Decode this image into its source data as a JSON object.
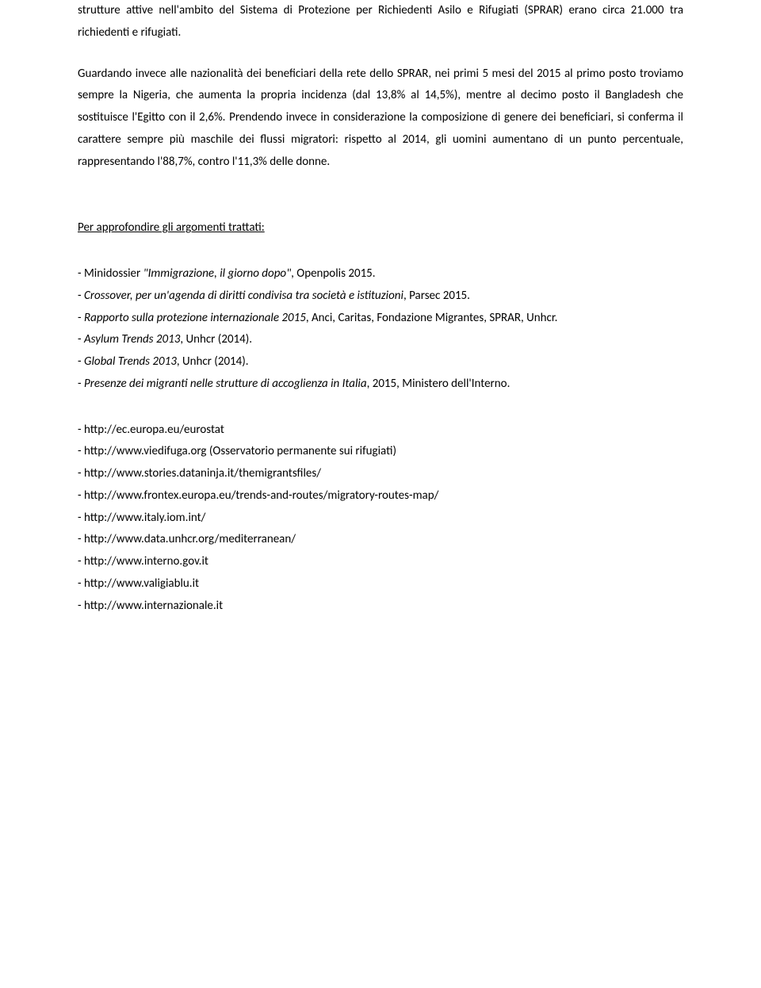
{
  "para1": "strutture attive nell'ambito del Sistema di Protezione per Richiedenti Asilo e Rifugiati (SPRAR) erano circa 21.000 tra richiedenti e rifugiati.",
  "para2": "Guardando invece alle nazionalità dei beneficiari della rete dello SPRAR, nei primi 5 mesi del 2015 al primo posto troviamo sempre la Nigeria, che aumenta la propria incidenza (dal 13,8% al 14,5%), mentre al decimo posto il Bangladesh che sostituisce l'Egitto con il 2,6%. Prendendo invece in considerazione la composizione di genere dei beneficiari, si conferma il carattere sempre più maschile dei flussi migratori: rispetto al 2014, gli uomini aumentano di un punto percentuale, rappresentando l'88,7%, contro l'11,3% delle donne.",
  "heading": "Per approfondire gli argomenti trattati:",
  "refs": [
    {
      "prefix": "- Minidossier ",
      "italic": "\"Immigrazione, il giorno dopo\"",
      "suffix": ", Openpolis 2015."
    },
    {
      "prefix": "- ",
      "italic": "Crossover, per un'agenda di diritti condivisa tra società e istituzioni",
      "suffix": ", Parsec 2015."
    },
    {
      "prefix": "- ",
      "italic": "Rapporto sulla protezione internazionale 2015",
      "suffix": ", Anci, Caritas, Fondazione Migrantes, SPRAR, Unhcr."
    },
    {
      "prefix": "- ",
      "italic": "Asylum Trends 2013",
      "suffix": ", Unhcr (2014)."
    },
    {
      "prefix": "- ",
      "italic": "Global Trends 2013",
      "suffix": ", Unhcr (2014)."
    },
    {
      "prefix": "- ",
      "italic": "Presenze dei migranti nelle strutture di accoglienza in Italia",
      "suffix": ", 2015, Ministero dell'Interno."
    }
  ],
  "urls": [
    "- http://ec.europa.eu/eurostat",
    "- http://www.viedifuga.org (Osservatorio permanente sui rifugiati)",
    "- http://www.stories.dataninja.it/themigrantsfiles/",
    "- http://www.frontex.europa.eu/trends-and-routes/migratory-routes-map/",
    "- http://www.italy.iom.int/",
    "- http://www.data.unhcr.org/mediterranean/",
    "- http://www.interno.gov.it",
    "- http://www.valigiablu.it",
    "- http://www.internazionale.it"
  ]
}
